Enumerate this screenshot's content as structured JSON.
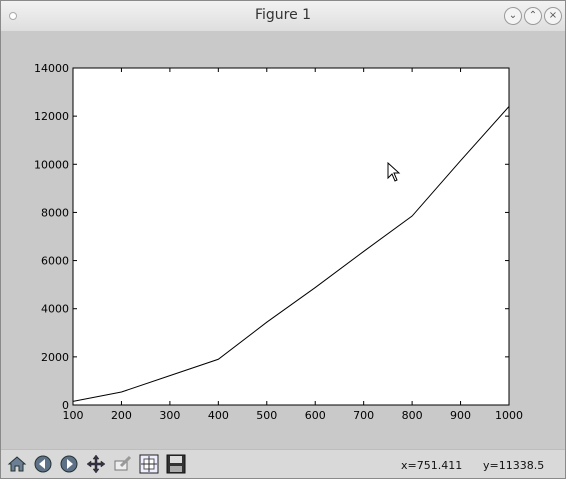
{
  "window": {
    "title": "Figure 1"
  },
  "titlebar": {
    "minimize_glyph": "⌄",
    "maximize_glyph": "⌃",
    "close_glyph": "×"
  },
  "toolbar": {
    "tools": [
      "home-icon",
      "back-icon",
      "forward-icon",
      "pan-icon",
      "zoom-icon",
      "configure-subplots-icon",
      "save-icon"
    ],
    "x_readout": "x=751.411",
    "y_readout": "y=11338.5"
  },
  "chart_data": {
    "type": "line",
    "x": [
      100,
      200,
      300,
      400,
      500,
      600,
      700,
      800,
      900,
      1000
    ],
    "series": [
      {
        "values": [
          150,
          540,
          1220,
          1900,
          3440,
          4880,
          6380,
          7850,
          10150,
          12400
        ],
        "color": "#000000"
      }
    ],
    "xlim": [
      100,
      1000
    ],
    "ylim": [
      0,
      14000
    ],
    "xticks": [
      "100",
      "200",
      "300",
      "400",
      "500",
      "600",
      "700",
      "800",
      "900",
      "1000"
    ],
    "yticks": [
      "0",
      "2000",
      "4000",
      "6000",
      "8000",
      "10000",
      "12000",
      "14000"
    ],
    "grid": false
  }
}
